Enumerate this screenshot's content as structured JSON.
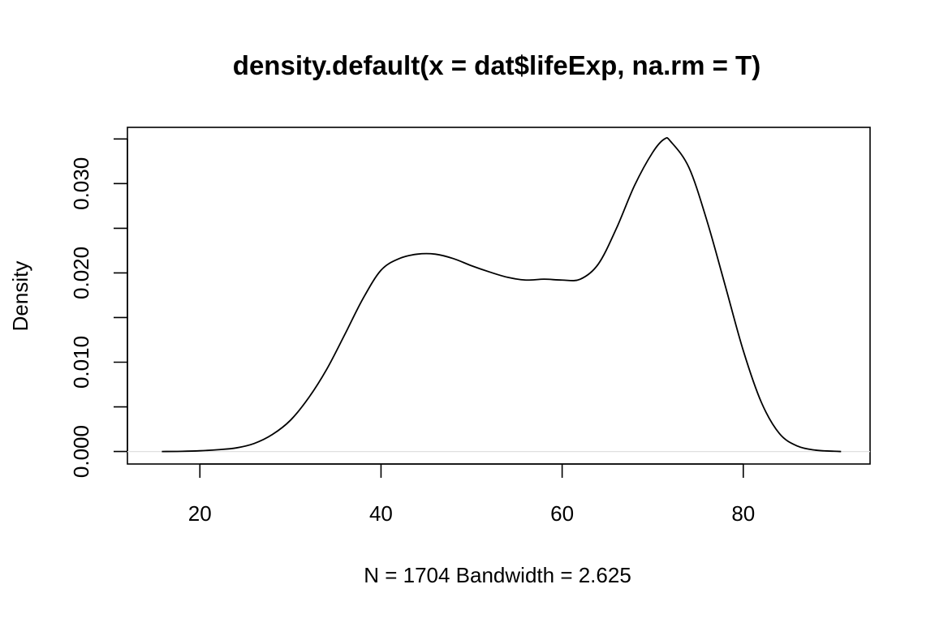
{
  "chart_data": {
    "type": "line",
    "title": "density.default(x = dat$lifeExp, na.rm = T)",
    "xlabel": "N = 1704   Bandwidth = 2.625",
    "ylabel": "Density",
    "xlim": [
      12.0,
      94.0
    ],
    "ylim": [
      -0.0014,
      0.0363
    ],
    "x_ticks": [
      20,
      40,
      60,
      80
    ],
    "x_tick_labels": [
      "20",
      "40",
      "60",
      "80"
    ],
    "y_ticks": [
      0.0,
      0.005,
      0.01,
      0.015,
      0.02,
      0.025,
      0.03,
      0.035
    ],
    "y_tick_labels": [
      "0.000",
      "",
      "0.010",
      "",
      "0.020",
      "",
      "0.030",
      ""
    ],
    "grid": false,
    "baseline": 0,
    "series": [
      {
        "x": [
          15.8,
          18,
          20,
          22,
          24,
          26,
          28,
          30,
          32,
          34,
          36,
          38,
          40,
          42,
          44,
          46,
          48,
          50,
          52,
          54,
          56,
          58,
          60,
          62,
          64,
          66,
          68,
          70,
          71.3,
          72,
          74,
          76,
          78,
          80,
          82,
          84,
          86,
          88,
          90,
          90.8
        ],
        "y": [
          0.0,
          2e-05,
          8e-05,
          0.0002,
          0.0004,
          0.0009,
          0.0019,
          0.0035,
          0.006,
          0.0092,
          0.0131,
          0.0171,
          0.0203,
          0.0216,
          0.0221,
          0.0221,
          0.0216,
          0.0208,
          0.0201,
          0.0195,
          0.0192,
          0.0193,
          0.0192,
          0.0193,
          0.021,
          0.025,
          0.0298,
          0.0335,
          0.035,
          0.0347,
          0.0318,
          0.0258,
          0.0186,
          0.0113,
          0.0055,
          0.002,
          0.0006,
          0.00015,
          3e-05,
          0.0
        ]
      }
    ]
  }
}
